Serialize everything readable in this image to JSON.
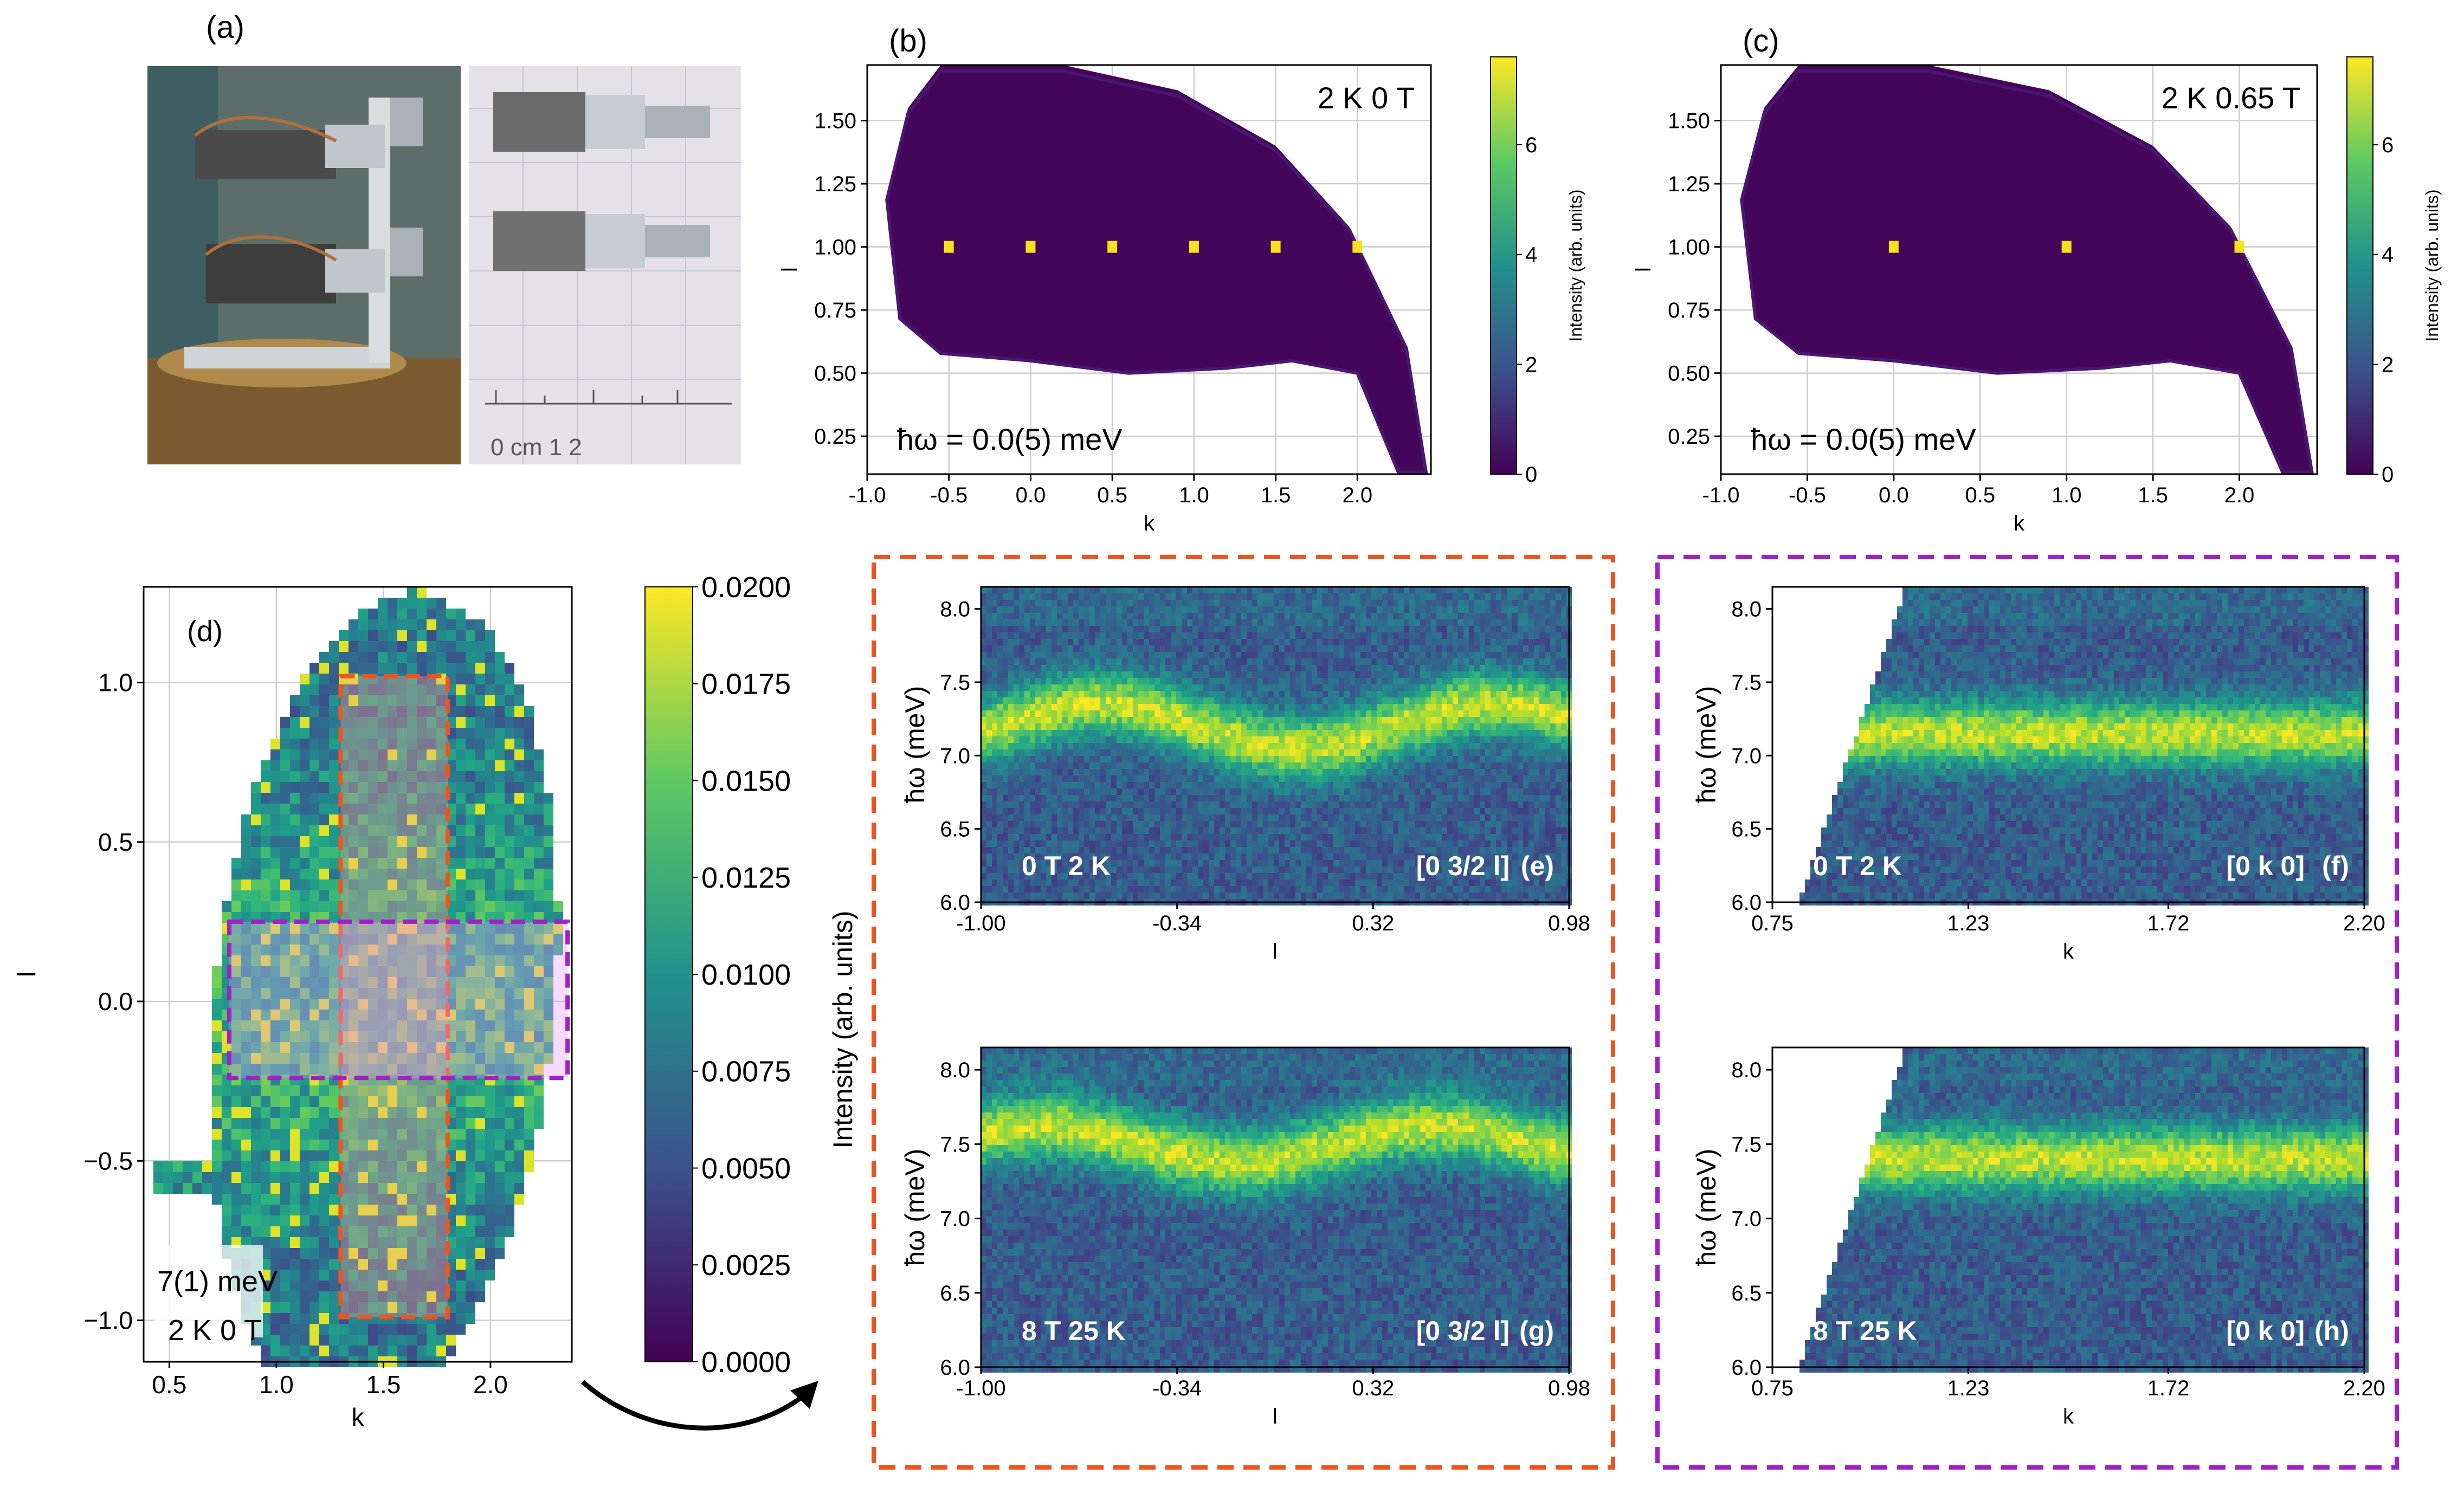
{
  "colors": {
    "vmin": "#440154",
    "vmid": "#21918c",
    "vmax": "#fde725",
    "orange_box": "#f0541e",
    "purple_box": "#a020c8",
    "grid": "#cccccc"
  },
  "panel_a": {
    "label": "(a)",
    "photo_left_alt": "Sample mount photo, side view",
    "photo_right_alt": "Sample mount photo on grid paper",
    "ruler_text": "0 cm 1 2"
  },
  "chart_data": [
    {
      "id": "b",
      "type": "heatmap",
      "label": "(b)",
      "annotation_top": "2 K 0 T",
      "annotation_bottom": "ħω = 0.0(5) meV",
      "xlabel": "k",
      "ylabel": "l",
      "xlim": [
        -1.0,
        2.45
      ],
      "ylim": [
        0.1,
        1.72
      ],
      "xticks": [
        "-1.0",
        "-0.5",
        "0.0",
        "0.5",
        "1.0",
        "1.5",
        "2.0"
      ],
      "yticks": [
        "0.25",
        "0.50",
        "0.75",
        "1.00",
        "1.25",
        "1.50"
      ],
      "bragg_peaks": [
        {
          "k": -0.5,
          "l": 1.0
        },
        {
          "k": 0.0,
          "l": 1.0
        },
        {
          "k": 0.5,
          "l": 1.0
        },
        {
          "k": 1.0,
          "l": 1.0
        },
        {
          "k": 1.5,
          "l": 1.0
        },
        {
          "k": 2.0,
          "l": 1.0
        }
      ],
      "colorbar": {
        "label": "Intensity (arb. units)",
        "min": 0,
        "max": 7.6,
        "ticks": [
          "0",
          "2",
          "4",
          "6"
        ]
      }
    },
    {
      "id": "c",
      "type": "heatmap",
      "label": "(c)",
      "annotation_top": "2 K 0.65 T",
      "annotation_bottom": "ħω = 0.0(5) meV",
      "xlabel": "k",
      "ylabel": "l",
      "xlim": [
        -1.0,
        2.45
      ],
      "ylim": [
        0.1,
        1.72
      ],
      "xticks": [
        "-1.0",
        "-0.5",
        "0.0",
        "0.5",
        "1.0",
        "1.5",
        "2.0"
      ],
      "yticks": [
        "0.25",
        "0.50",
        "0.75",
        "1.00",
        "1.25",
        "1.50"
      ],
      "bragg_peaks": [
        {
          "k": 0.0,
          "l": 1.0
        },
        {
          "k": 1.0,
          "l": 1.0
        },
        {
          "k": 2.0,
          "l": 1.0
        }
      ],
      "colorbar": {
        "label": "Intensity (arb. units)",
        "min": 0,
        "max": 7.6,
        "ticks": [
          "0",
          "2",
          "4",
          "6"
        ]
      }
    },
    {
      "id": "d",
      "type": "heatmap",
      "label": "(d)",
      "annotation_line1": "7(1) meV",
      "annotation_line2": "2 K 0 T",
      "xlabel": "k",
      "ylabel": "l",
      "xlim": [
        0.38,
        2.38
      ],
      "ylim": [
        -1.13,
        1.3
      ],
      "xticks": [
        "0.5",
        "1.0",
        "1.5",
        "2.0"
      ],
      "yticks": [
        "−1.0",
        "−0.5",
        "0.0",
        "0.5",
        "1.0"
      ],
      "cut_boxes": [
        {
          "name": "orange-cut",
          "color": "orange",
          "k": [
            1.3,
            1.8
          ],
          "l": [
            -0.99,
            1.02
          ]
        },
        {
          "name": "purple-cut",
          "color": "purple",
          "k": [
            0.78,
            2.36
          ],
          "l": [
            -0.24,
            0.25
          ]
        }
      ],
      "colorbar": {
        "label": "Intensity (arb. units)",
        "min": 0.0,
        "max": 0.02,
        "ticks": [
          "0.0000",
          "0.0025",
          "0.0050",
          "0.0075",
          "0.0100",
          "0.0125",
          "0.0150",
          "0.0175",
          "0.0200"
        ]
      }
    },
    {
      "id": "e",
      "type": "heatmap",
      "label": "(e)",
      "condition": "0 T 2 K",
      "direction": "[0 3/2 l]",
      "xlabel": "l",
      "ylabel": "ħω (meV)",
      "xlim": [
        -1.0,
        0.98
      ],
      "ylim": [
        6.0,
        8.15
      ],
      "xticks": [
        "-1.00",
        "-0.34",
        "0.32",
        "0.98"
      ],
      "yticks": [
        "6.0",
        "6.5",
        "7.0",
        "7.5",
        "8.0"
      ],
      "dispersion": {
        "center": 7.2,
        "amplitude": 0.15,
        "period": 1.33,
        "phase_l": -0.6
      }
    },
    {
      "id": "f",
      "type": "heatmap",
      "label": "(f)",
      "condition": "0 T 2 K",
      "direction": "[0 k 0]",
      "xlabel": "k",
      "ylabel": "ħω (meV)",
      "xlim": [
        0.75,
        2.2
      ],
      "ylim": [
        6.0,
        8.15
      ],
      "xticks": [
        "0.75",
        "1.23",
        "1.72",
        "2.20"
      ],
      "yticks": [
        "6.0",
        "6.5",
        "7.0",
        "7.5",
        "8.0"
      ],
      "dispersion": {
        "center": 7.15,
        "amplitude": 0.0,
        "period": 1.0,
        "phase_l": 0.0
      }
    },
    {
      "id": "g",
      "type": "heatmap",
      "label": "(g)",
      "condition": "8 T 25 K",
      "direction": "[0 3/2 l]",
      "xlabel": "l",
      "ylabel": "ħω (meV)",
      "xlim": [
        -1.0,
        0.98
      ],
      "ylim": [
        6.0,
        8.15
      ],
      "xticks": [
        "-1.00",
        "-0.34",
        "0.32",
        "0.98"
      ],
      "yticks": [
        "6.0",
        "6.5",
        "7.0",
        "7.5",
        "8.0"
      ],
      "dispersion": {
        "center": 7.5,
        "amplitude": 0.12,
        "period": 1.33,
        "phase_l": -0.8
      }
    },
    {
      "id": "h",
      "type": "heatmap",
      "label": "(h)",
      "condition": "8 T 25 K",
      "direction": "[0 k 0]",
      "xlabel": "k",
      "ylabel": "ħω (meV)",
      "xlim": [
        0.75,
        2.2
      ],
      "ylim": [
        6.0,
        8.15
      ],
      "xticks": [
        "0.75",
        "1.23",
        "1.72",
        "2.20"
      ],
      "yticks": [
        "6.0",
        "6.5",
        "7.0",
        "7.5",
        "8.0"
      ],
      "dispersion": {
        "center": 7.4,
        "amplitude": 0.0,
        "period": 1.0,
        "phase_l": 0.0
      }
    }
  ],
  "shared_label": "Intensity (arb. units)"
}
